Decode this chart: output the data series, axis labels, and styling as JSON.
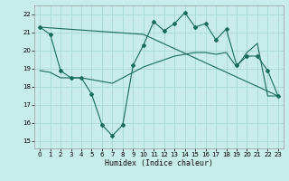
{
  "xlabel": "Humidex (Indice chaleur)",
  "xlim": [
    -0.5,
    23.5
  ],
  "ylim": [
    14.6,
    22.5
  ],
  "yticks": [
    15,
    16,
    17,
    18,
    19,
    20,
    21,
    22
  ],
  "xticks": [
    0,
    1,
    2,
    3,
    4,
    5,
    6,
    7,
    8,
    9,
    10,
    11,
    12,
    13,
    14,
    15,
    16,
    17,
    18,
    19,
    20,
    21,
    22,
    23
  ],
  "background_color": "#c8ece9",
  "grid_color": "#a8d8d4",
  "line_color": "#1a6b5a",
  "line1_x": [
    0,
    1,
    2,
    3,
    4,
    5,
    6,
    7,
    8,
    9,
    10,
    11,
    12,
    13,
    14,
    15,
    16,
    17,
    18,
    19,
    20,
    21,
    22,
    23
  ],
  "line1_y": [
    21.3,
    20.9,
    18.9,
    18.5,
    18.5,
    17.6,
    15.9,
    15.3,
    15.9,
    19.2,
    20.3,
    21.6,
    21.1,
    21.5,
    22.1,
    21.3,
    21.5,
    20.6,
    21.2,
    19.2,
    19.7,
    19.7,
    18.9,
    17.5
  ],
  "line2_x": [
    0,
    10,
    23
  ],
  "line2_y": [
    21.3,
    20.9,
    17.5
  ],
  "line3_x": [
    0,
    1,
    2,
    3,
    4,
    5,
    6,
    7,
    8,
    9,
    10,
    11,
    12,
    13,
    14,
    15,
    16,
    17,
    18,
    19,
    20,
    21,
    22,
    23
  ],
  "line3_y": [
    18.9,
    18.8,
    18.5,
    18.5,
    18.5,
    18.4,
    18.3,
    18.2,
    18.5,
    18.8,
    19.1,
    19.3,
    19.5,
    19.7,
    19.8,
    19.9,
    19.9,
    19.8,
    19.9,
    19.1,
    19.9,
    20.4,
    17.5,
    17.5
  ]
}
